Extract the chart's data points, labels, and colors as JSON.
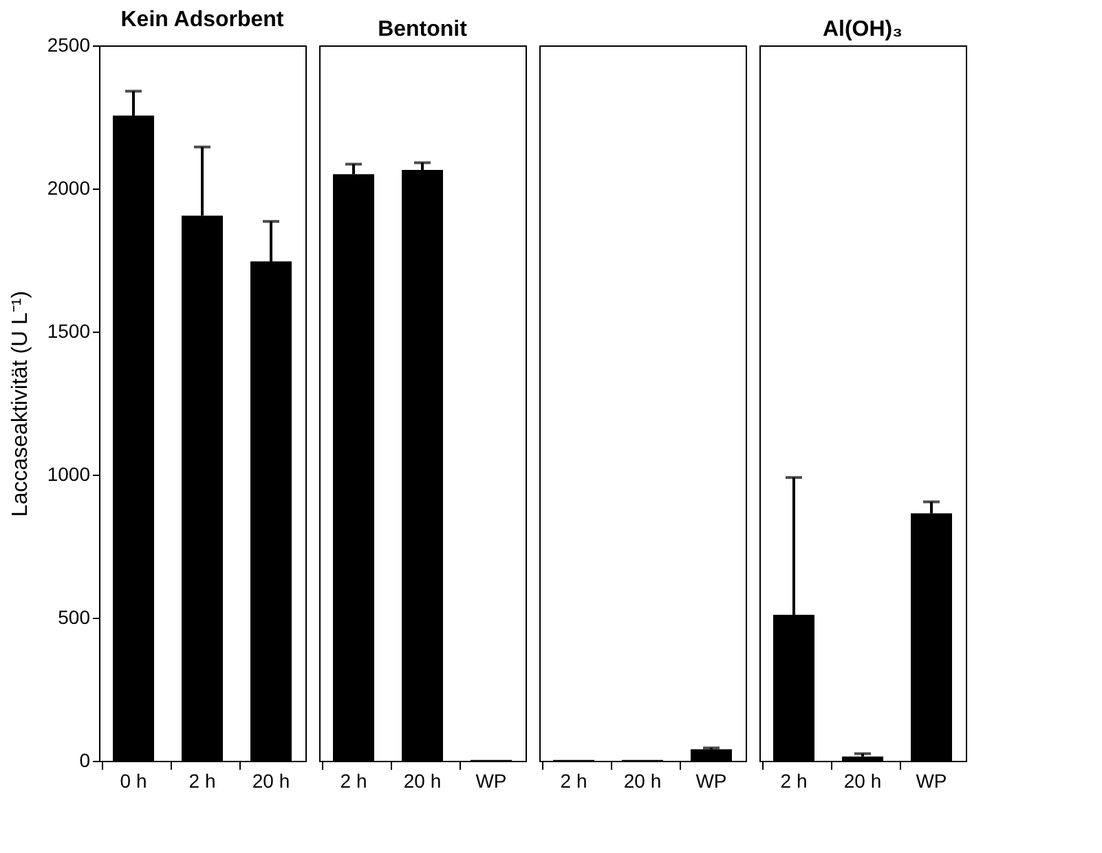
{
  "chart_data": [
    {
      "type": "bar",
      "title": "Kein Adsorbent",
      "ylabel": "Laccaseaktivität  (U L⁻¹)",
      "categories": [
        "0 h",
        "2 h",
        "20 h"
      ],
      "values": [
        2255,
        1905,
        1745
      ],
      "errors": [
        [
          2255,
          2340
        ],
        [
          1905,
          2145
        ],
        [
          1745,
          1885
        ]
      ],
      "colors": [
        "#000000",
        "#000000",
        "#000000"
      ],
      "ylim": [
        0,
        2500
      ],
      "yticks": [
        0,
        500,
        1000,
        1500,
        2000,
        2500
      ],
      "grid": false
    },
    {
      "type": "bar",
      "title": "Bentonit",
      "categories": [
        "2 h",
        "20 h",
        "WP"
      ],
      "values": [
        2050,
        2065,
        3
      ],
      "errors": [
        [
          2050,
          2085
        ],
        [
          2065,
          2090
        ],
        null
      ],
      "colors": [
        "#000000",
        "#000000",
        "#000000"
      ],
      "ylim": [
        0,
        2500
      ],
      "yticks": [
        0,
        500,
        1000,
        1500,
        2000,
        2500
      ],
      "tick_labels": "x",
      "grid": false
    },
    {
      "type": "bar",
      "categories": [
        "2 h",
        "20 h",
        "WP"
      ],
      "values": [
        3,
        3,
        40
      ],
      "errors": [
        null,
        null,
        [
          40,
          45
        ]
      ],
      "colors": [
        "#000000",
        "#000000",
        "#000000"
      ],
      "ylim": [
        0,
        2500
      ],
      "yticks": [
        0,
        500,
        1000,
        1500,
        2000,
        2500
      ],
      "tick_labels": "x",
      "grid": false
    },
    {
      "type": "bar",
      "title": "Al(OH)₃",
      "categories": [
        "2 h",
        "20 h",
        "WP"
      ],
      "values": [
        510,
        15,
        865
      ],
      "errors": [
        [
          510,
          990
        ],
        [
          15,
          25
        ],
        [
          865,
          905
        ]
      ],
      "colors": [
        "#000000",
        "#000000",
        "#000000"
      ],
      "ylim": [
        0,
        2500
      ],
      "yticks": [
        0,
        500,
        1000,
        1500,
        2000,
        2500
      ],
      "tick_labels": "x",
      "grid": false
    }
  ]
}
